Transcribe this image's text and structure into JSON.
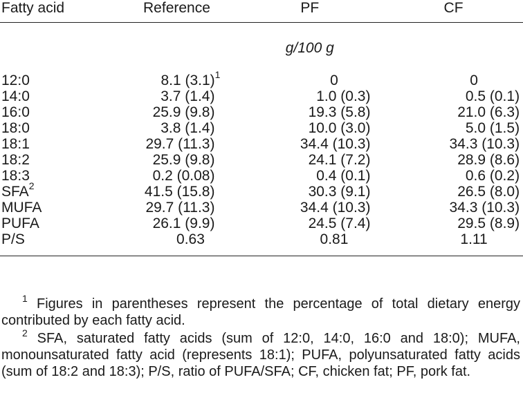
{
  "table": {
    "headers": {
      "fatty_acid": "Fatty acid",
      "reference": "Reference",
      "pf": "PF",
      "cf": "CF"
    },
    "unit": "g/100 g",
    "rows": [
      {
        "label": "12:0",
        "label_sup": "",
        "reference": "8.1 (3.1)",
        "reference_sup": "1",
        "pf": "0",
        "cf": "0",
        "centered": true
      },
      {
        "label": "14:0",
        "label_sup": "",
        "reference": "3.7 (1.4)",
        "reference_sup": "",
        "pf": "1.0 (0.3)",
        "cf": "0.5 (0.1)"
      },
      {
        "label": "16:0",
        "label_sup": "",
        "reference": "25.9 (9.8)",
        "reference_sup": "",
        "pf": "19.3 (5.8)",
        "cf": "21.0 (6.3)"
      },
      {
        "label": "18:0",
        "label_sup": "",
        "reference": "3.8 (1.4)",
        "reference_sup": "",
        "pf": "10.0 (3.0)",
        "cf": "5.0 (1.5)"
      },
      {
        "label": "18:1",
        "label_sup": "",
        "reference": "29.7 (11.3)",
        "reference_sup": "",
        "pf": "34.4 (10.3)",
        "cf": "34.3 (10.3)"
      },
      {
        "label": "18:2",
        "label_sup": "",
        "reference": "25.9 (9.8)",
        "reference_sup": "",
        "pf": "24.1 (7.2)",
        "cf": "28.9 (8.6)"
      },
      {
        "label": "18:3",
        "label_sup": "",
        "reference": "0.2 (0.08)",
        "reference_sup": "",
        "pf": "0.4 (0.1)",
        "cf": "0.6 (0.2)"
      },
      {
        "label": "SFA",
        "label_sup": "2",
        "reference": "41.5 (15.8)",
        "reference_sup": "",
        "pf": "30.3 (9.1)",
        "cf": "26.5 (8.0)"
      },
      {
        "label": "MUFA",
        "label_sup": "",
        "reference": "29.7 (11.3)",
        "reference_sup": "",
        "pf": "34.4 (10.3)",
        "cf": "34.3 (10.3)"
      },
      {
        "label": "PUFA",
        "label_sup": "",
        "reference": "26.1 (9.9)",
        "reference_sup": "",
        "pf": "24.5 (7.4)",
        "cf": "29.5 (8.9)"
      },
      {
        "label": "P/S",
        "label_sup": "",
        "reference": "0.63",
        "reference_sup": "",
        "pf": "0.81",
        "cf": "1.11",
        "centered": true
      }
    ]
  },
  "footnotes": [
    {
      "marker": "1",
      "text": " Figures in parentheses represent the percentage of total dietary energy contributed by each fatty acid."
    },
    {
      "marker": "2",
      "text": " SFA, saturated fatty acids (sum of 12:0, 14:0, 16:0 and 18:0); MUFA, monounsaturated fatty acid (represents 18:1); PUFA, polyunsaturated fatty acids (sum of 18:2 and 18:3); P/S, ratio of PUFA/SFA; CF, chicken fat; PF, pork fat."
    }
  ]
}
